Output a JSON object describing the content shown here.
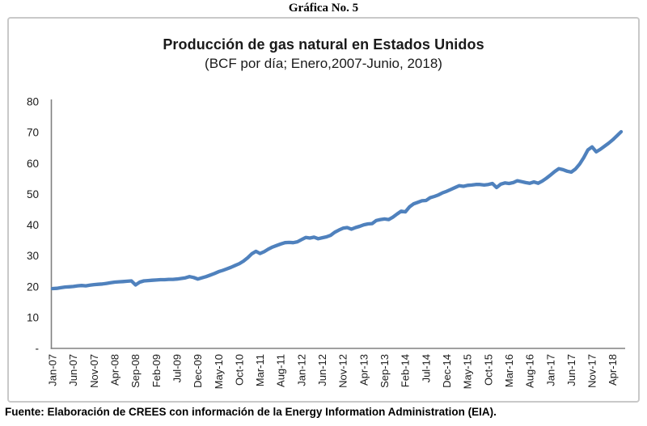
{
  "figure": {
    "caption": "Gráfica No. 5",
    "source": "Fuente: Elaboración de CREES con información de la Energy Information Administration (EIA)."
  },
  "chart_data": {
    "type": "line",
    "title": "Producción de gas natural en Estados Unidos",
    "subtitle": "(BCF por día; Enero,2007-Junio, 2018)",
    "frequency": "monthly",
    "x_start": "Jan-07",
    "x_end": "Jun-18",
    "x_tick_interval_months": 5,
    "x_tick_labels": [
      "Jan-07",
      "Jun-07",
      "Nov-07",
      "Apr-08",
      "Sep-08",
      "Feb-09",
      "Jul-09",
      "Dec-09",
      "May-10",
      "Oct-10",
      "Mar-11",
      "Aug-11",
      "Jan-12",
      "Jun-12",
      "Nov-12",
      "Apr-13",
      "Sep-13",
      "Feb-14",
      "Jul-14",
      "Dec-14",
      "May-15",
      "Oct-15",
      "Mar-16",
      "Aug-16",
      "Jan-17",
      "Jun-17",
      "Nov-17",
      "Apr-18"
    ],
    "y_ticks": {
      "values": [
        0,
        10,
        20,
        30,
        40,
        50,
        60,
        70,
        80
      ],
      "labels": [
        "-",
        "10",
        "20",
        "30",
        "40",
        "50",
        "60",
        "70",
        "80"
      ]
    },
    "ylim": [
      0,
      80
    ],
    "grid": false,
    "legend": "none",
    "axis_color": "#808080",
    "tick_color": "#1a1a1a",
    "series": [
      {
        "name": "Producción de gas natural (BCF por día)",
        "color": "#4F81BD",
        "values": [
          19.4,
          19.5,
          19.7,
          19.9,
          20.0,
          20.1,
          20.3,
          20.4,
          20.3,
          20.5,
          20.7,
          20.8,
          20.9,
          21.1,
          21.3,
          21.5,
          21.6,
          21.7,
          21.8,
          21.9,
          20.6,
          21.5,
          21.9,
          22.0,
          22.1,
          22.2,
          22.3,
          22.3,
          22.4,
          22.4,
          22.5,
          22.7,
          22.9,
          23.3,
          23.0,
          22.5,
          22.9,
          23.3,
          23.8,
          24.3,
          24.9,
          25.3,
          25.8,
          26.3,
          26.9,
          27.5,
          28.3,
          29.4,
          30.7,
          31.5,
          30.8,
          31.4,
          32.2,
          32.9,
          33.4,
          33.9,
          34.3,
          34.4,
          34.3,
          34.6,
          35.3,
          36.0,
          35.8,
          36.1,
          35.6,
          35.9,
          36.2,
          36.7,
          37.7,
          38.4,
          39.0,
          39.2,
          38.7,
          39.2,
          39.6,
          40.1,
          40.4,
          40.5,
          41.5,
          41.8,
          42.0,
          41.8,
          42.6,
          43.6,
          44.5,
          44.3,
          45.9,
          46.9,
          47.4,
          47.9,
          48.0,
          48.9,
          49.3,
          49.8,
          50.5,
          51.0,
          51.6,
          52.2,
          52.8,
          52.6,
          52.9,
          53.0,
          53.2,
          53.2,
          53.0,
          53.2,
          53.5,
          52.2,
          53.3,
          53.7,
          53.5,
          53.8,
          54.4,
          54.1,
          53.8,
          53.6,
          54.0,
          53.6,
          54.3,
          55.2,
          56.3,
          57.4,
          58.3,
          58.0,
          57.5,
          57.2,
          58.2,
          59.8,
          61.9,
          64.4,
          65.4,
          63.8,
          64.6,
          65.6,
          66.6,
          67.7,
          69.0,
          70.3
        ]
      }
    ]
  }
}
